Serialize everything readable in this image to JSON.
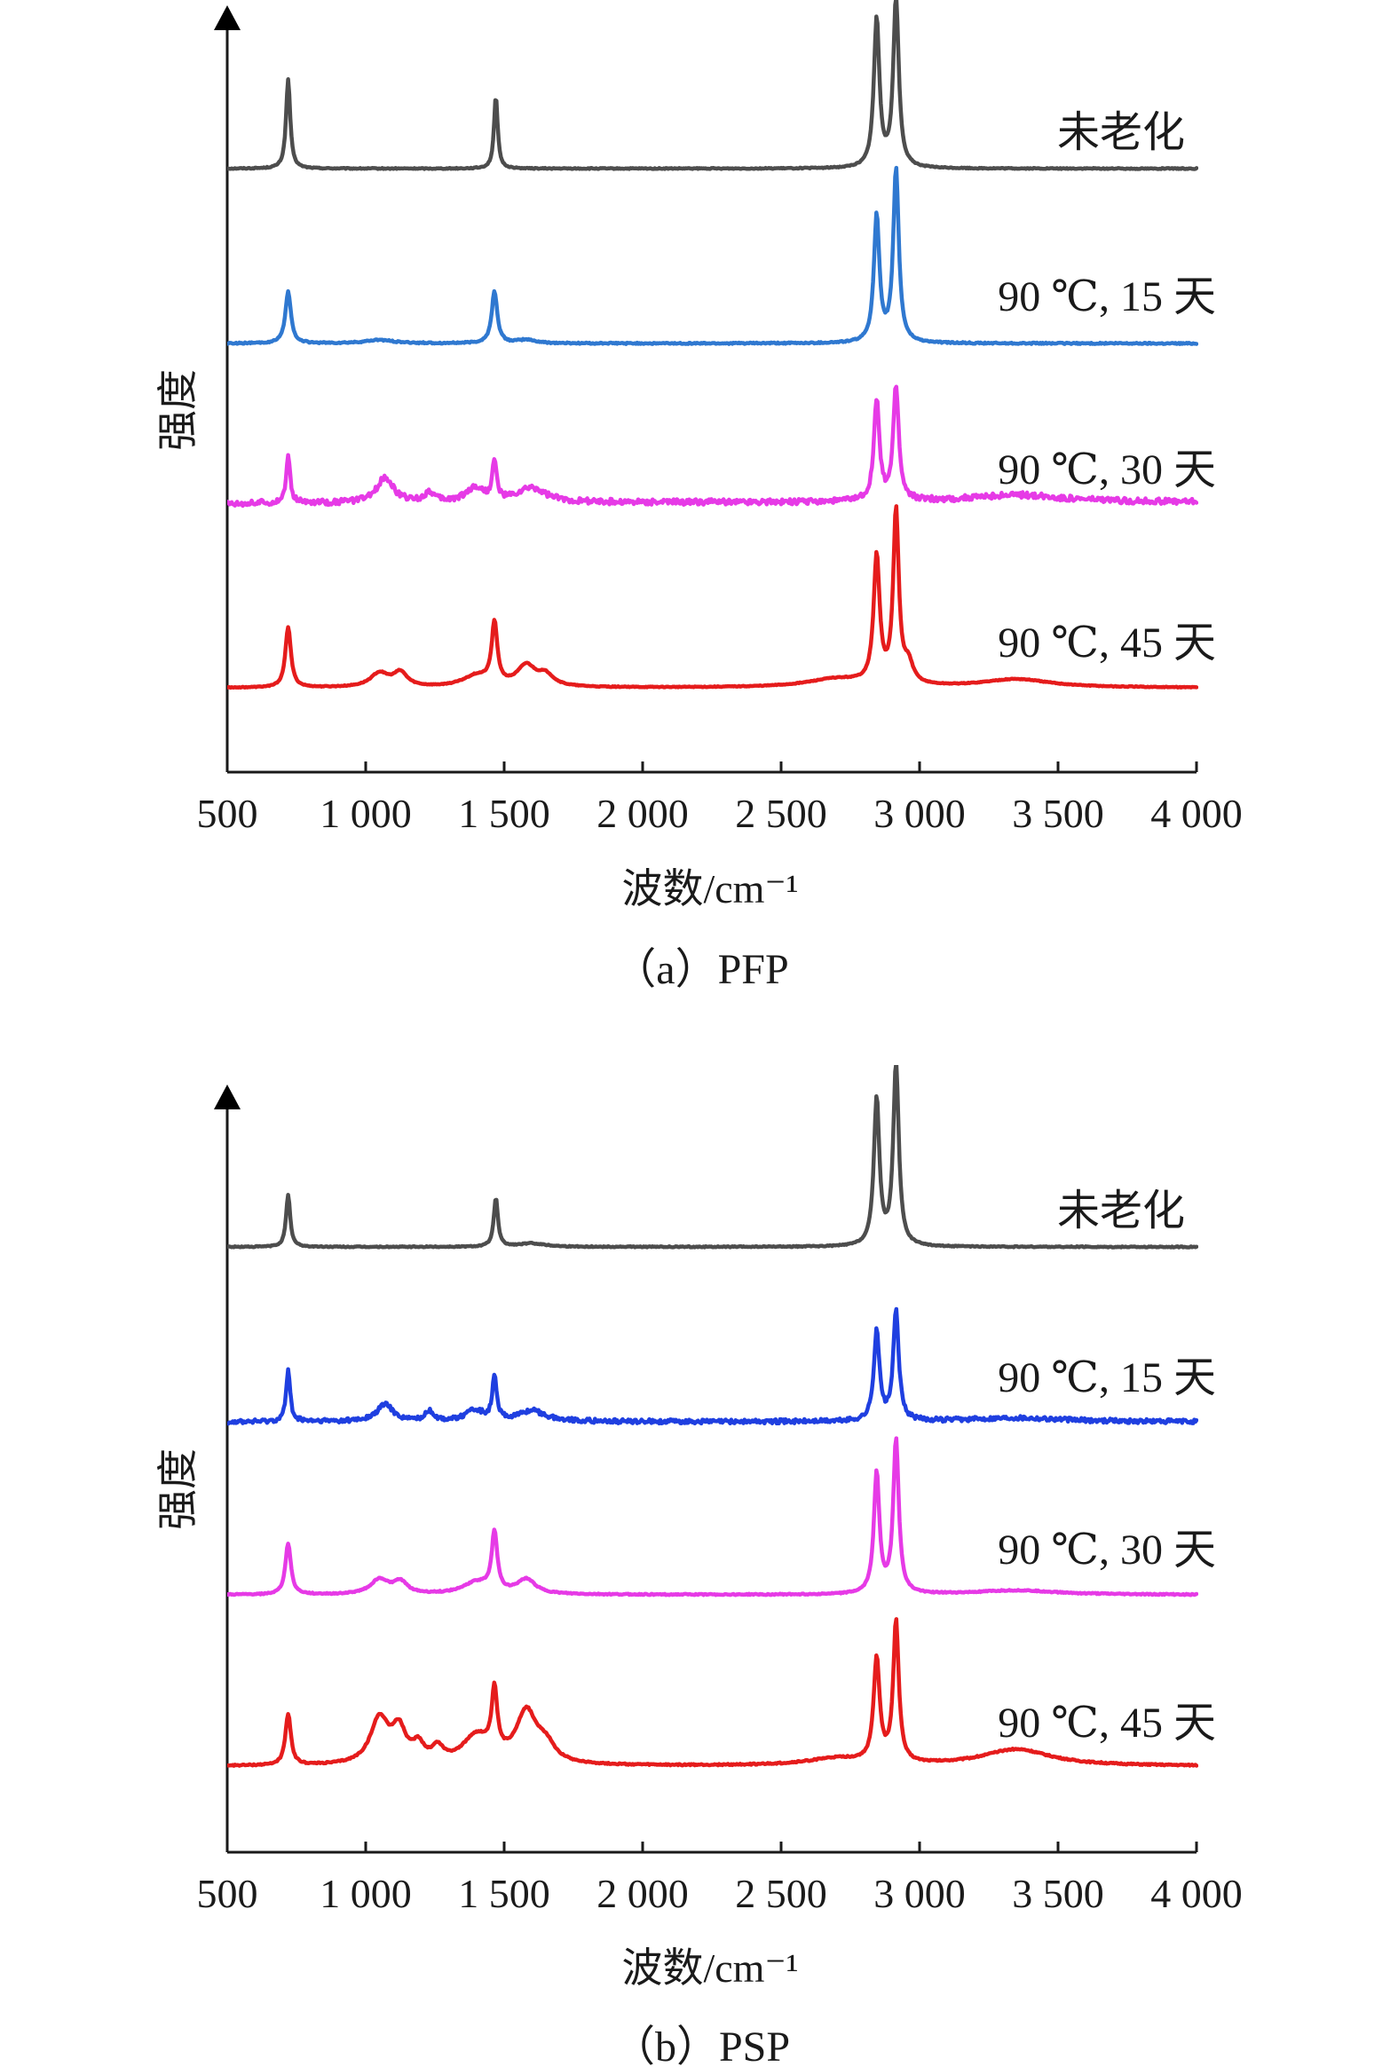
{
  "chart_data": [
    {
      "type": "line",
      "caption": "（a）PFP",
      "xlabel": "波数/cm⁻¹",
      "ylabel": "强度",
      "xlim": [
        500,
        4000
      ],
      "x_ticks": [
        500,
        1000,
        1500,
        2000,
        2500,
        3000,
        3500,
        4000
      ],
      "x_tick_labels": [
        "500",
        "1 000",
        "1 500",
        "2 000",
        "2 500",
        "3 000",
        "3 500",
        "4 000"
      ],
      "y_ticks": "none",
      "y_axis_arrow": true,
      "grid": false,
      "legend": "labels beside each trace, right side",
      "series": [
        {
          "name": "未老化",
          "color": "#4d4d4d",
          "baseline": 0,
          "baseline_slope": 0,
          "noise": 0.3,
          "peaks": [
            [
              720,
              9,
              53
            ],
            [
              1470,
              8,
              43
            ],
            [
              2845,
              12,
              88
            ],
            [
              2915,
              12,
              100
            ]
          ]
        },
        {
          "name": "90 ℃, 15 天",
          "color": "#2f78d0",
          "baseline": 0,
          "baseline_slope": 0,
          "noise": 0.4,
          "peaks": [
            [
              720,
              12,
              30
            ],
            [
              1465,
              12,
              30
            ],
            [
              1050,
              60,
              2
            ],
            [
              1580,
              40,
              2
            ],
            [
              2845,
              12,
              73
            ],
            [
              2915,
              12,
              100
            ]
          ]
        },
        {
          "name": "90 ℃, 30 天",
          "color": "#e63ae6",
          "baseline": 8,
          "baseline_slope": 0.9,
          "noise": 2.0,
          "peaks": [
            [
              720,
              9,
              32
            ],
            [
              1070,
              35,
              18
            ],
            [
              1230,
              20,
              7
            ],
            [
              1395,
              40,
              10
            ],
            [
              1465,
              9,
              27
            ],
            [
              1600,
              60,
              10
            ],
            [
              2845,
              12,
              70
            ],
            [
              2915,
              12,
              80
            ],
            [
              3350,
              200,
              5
            ]
          ]
        },
        {
          "name": "90 ℃, 45 天",
          "color": "#e51c1c",
          "baseline": 0,
          "baseline_slope": 0,
          "noise": 0.3,
          "peaks": [
            [
              720,
              12,
              44
            ],
            [
              1050,
              40,
              10
            ],
            [
              1125,
              30,
              10
            ],
            [
              1400,
              60,
              8
            ],
            [
              1465,
              12,
              44
            ],
            [
              1580,
              40,
              15
            ],
            [
              1650,
              35,
              8
            ],
            [
              2700,
              130,
              6
            ],
            [
              2845,
              13,
              92
            ],
            [
              2915,
              12,
              125
            ],
            [
              2960,
              20,
              14
            ],
            [
              3350,
              150,
              6
            ]
          ]
        }
      ]
    },
    {
      "type": "line",
      "caption": "（b）PSP",
      "xlabel": "波数/cm⁻¹",
      "ylabel": "强度",
      "xlim": [
        500,
        4000
      ],
      "x_ticks": [
        500,
        1000,
        1500,
        2000,
        2500,
        3000,
        3500,
        4000
      ],
      "x_tick_labels": [
        "500",
        "1 000",
        "1 500",
        "2 000",
        "2 500",
        "3 000",
        "3 500",
        "4 000"
      ],
      "y_ticks": "none",
      "y_axis_arrow": true,
      "grid": false,
      "legend": "labels beside each trace, right side",
      "series": [
        {
          "name": "未老化",
          "color": "#4d4d4d",
          "baseline": 0,
          "baseline_slope": 0,
          "noise": 0.3,
          "peaks": [
            [
              720,
              9,
              30
            ],
            [
              1470,
              9,
              28
            ],
            [
              1600,
              60,
              2
            ],
            [
              2845,
              12,
              85
            ],
            [
              2915,
              12,
              105
            ]
          ]
        },
        {
          "name": "90 ℃, 15 天",
          "color": "#1f3fe0",
          "baseline": 0,
          "baseline_slope": 0,
          "noise": 1.6,
          "peaks": [
            [
              720,
              9,
              38
            ],
            [
              1070,
              35,
              13
            ],
            [
              1230,
              20,
              7
            ],
            [
              1395,
              40,
              8
            ],
            [
              1465,
              9,
              32
            ],
            [
              1600,
              60,
              8
            ],
            [
              2845,
              12,
              68
            ],
            [
              2915,
              12,
              82
            ],
            [
              3350,
              200,
              3
            ]
          ]
        },
        {
          "name": "90 ℃, 30 天",
          "color": "#e63ae6",
          "baseline": 0,
          "baseline_slope": 0,
          "noise": 0.4,
          "peaks": [
            [
              720,
              12,
              35
            ],
            [
              1050,
              40,
              10
            ],
            [
              1125,
              30,
              8
            ],
            [
              1400,
              60,
              8
            ],
            [
              1465,
              12,
              40
            ],
            [
              1580,
              40,
              10
            ],
            [
              2845,
              12,
              82
            ],
            [
              2915,
              12,
              105
            ],
            [
              3350,
              180,
              3
            ]
          ]
        },
        {
          "name": "90 ℃, 45 天",
          "color": "#e51c1c",
          "baseline": 0,
          "baseline_slope": 0,
          "noise": 0.5,
          "peaks": [
            [
              720,
              12,
              37
            ],
            [
              1050,
              40,
              33
            ],
            [
              1120,
              30,
              23
            ],
            [
              1190,
              25,
              12
            ],
            [
              1260,
              25,
              10
            ],
            [
              1400,
              60,
              20
            ],
            [
              1465,
              12,
              45
            ],
            [
              1580,
              45,
              37
            ],
            [
              1650,
              40,
              12
            ],
            [
              2700,
              130,
              5
            ],
            [
              2845,
              13,
              75
            ],
            [
              2915,
              12,
              102
            ],
            [
              3350,
              150,
              12
            ]
          ]
        }
      ]
    }
  ]
}
